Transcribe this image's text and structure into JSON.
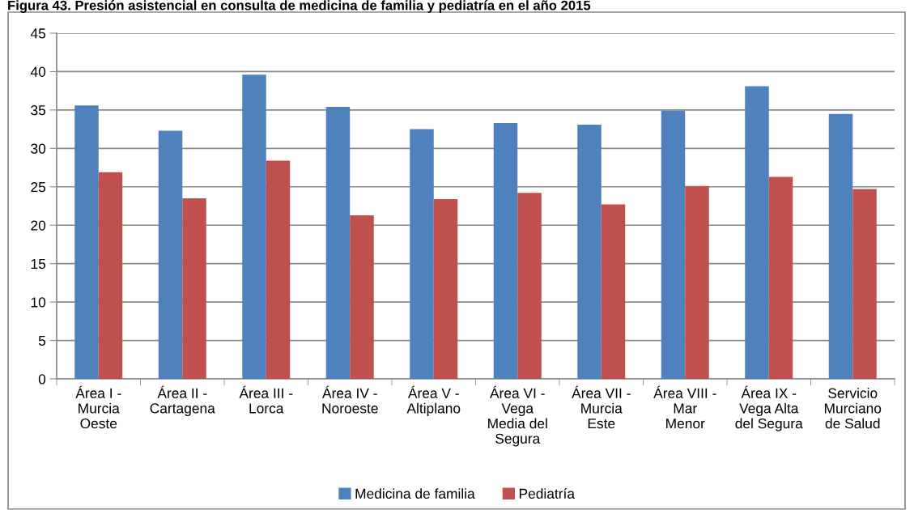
{
  "chart_data": {
    "type": "bar",
    "title": "Figura 43. Presión asistencial en consulta de medicina de familia y pediatría en el año 2015",
    "categories": [
      "Área I -\nMurcia\nOeste",
      "Área II -\nCartagena",
      "Área III -\nLorca",
      "Área IV -\nNoroeste",
      "Área V -\nAltiplano",
      "Área VI -\nVega\nMedia del\nSegura",
      "Área VII -\nMurcia\nEste",
      "Área VIII -\nMar\nMenor",
      "Área IX -\nVega Alta\ndel Segura",
      "Servicio\nMurciano\nde Salud"
    ],
    "series": [
      {
        "name": "Medicina de familia",
        "color": "#4f81bd",
        "values": [
          35.6,
          32.3,
          39.6,
          35.4,
          32.5,
          33.3,
          33.1,
          34.9,
          38.1,
          34.5
        ]
      },
      {
        "name": "Pediatría",
        "color": "#c0504d",
        "values": [
          26.9,
          23.5,
          28.4,
          21.3,
          23.4,
          24.2,
          22.7,
          25.1,
          26.3,
          24.7
        ]
      }
    ],
    "ylim": [
      0,
      45
    ],
    "yticks": [
      0,
      5,
      10,
      15,
      20,
      25,
      30,
      35,
      40,
      45
    ],
    "grid": "y",
    "legend": "bottom"
  }
}
